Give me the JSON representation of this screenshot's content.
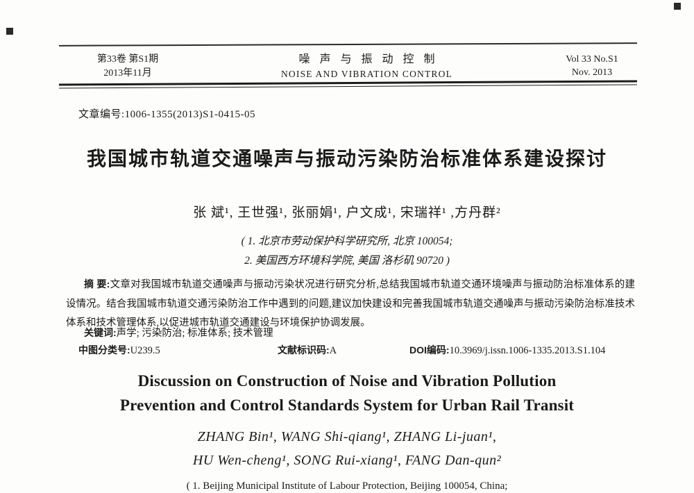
{
  "header": {
    "left": {
      "line1": "第33卷 第S1期",
      "line2": "2013年11月"
    },
    "center": {
      "line1": "噪声与振动控制",
      "line2": "NOISE AND VIBRATION CONTROL"
    },
    "right": {
      "line1": "Vol 33 No.S1",
      "line2": "Nov. 2013"
    }
  },
  "meta": {
    "article_number": "文章编号:1006-1355(2013)S1-0415-05"
  },
  "title_cn": "我国城市轨道交通噪声与振动污染防治标准体系建设探讨",
  "authors_cn": "张  斌¹, 王世强¹, 张丽娟¹, 户文成¹, 宋瑞祥¹ ,方丹群²",
  "affiliations": [
    "( 1. 北京市劳动保护科学研究所, 北京 100054;",
    "2. 美国西方环境科学院, 美国 洛杉矶 90720 )"
  ],
  "abstract": {
    "label": "摘 要:",
    "text": "文章对我国城市轨道交通噪声与振动污染状况进行研究分析,总结我国城市轨道交通环境噪声与振动防治标准体系的建设情况。结合我国城市轨道交通污染防治工作中遇到的问题,建议加快建设和完善我国城市轨道交通噪声与振动污染防治标准技术体系和技术管理体系,以促进城市轨道交通建设与环境保护协调发展。"
  },
  "keywords": {
    "label": "关键词:",
    "text": "声学; 污染防治; 标准体系; 技术管理"
  },
  "classification": {
    "clc_label": "中图分类号:",
    "clc_value": "U239.5",
    "doc_code_label": "文献标识码:",
    "doc_code_value": "A",
    "doi_label": "DOI编码:",
    "doi_value": "10.3969/j.issn.1006-1335.2013.S1.104"
  },
  "title_en": [
    "Discussion on Construction of Noise and Vibration Pollution",
    "Prevention and Control Standards System for Urban Rail Transit"
  ],
  "authors_en": [
    "ZHANG  Bin¹,  WANG  Shi-qiang¹,  ZHANG  Li-juan¹,",
    "HU  Wen-cheng¹,  SONG  Rui-xiang¹,  FANG  Dan-qun²"
  ],
  "affiliation_en_partial": "( 1. Beijing Municipal Institute of Labour Protection,  Beijing  100054,  China;"
}
